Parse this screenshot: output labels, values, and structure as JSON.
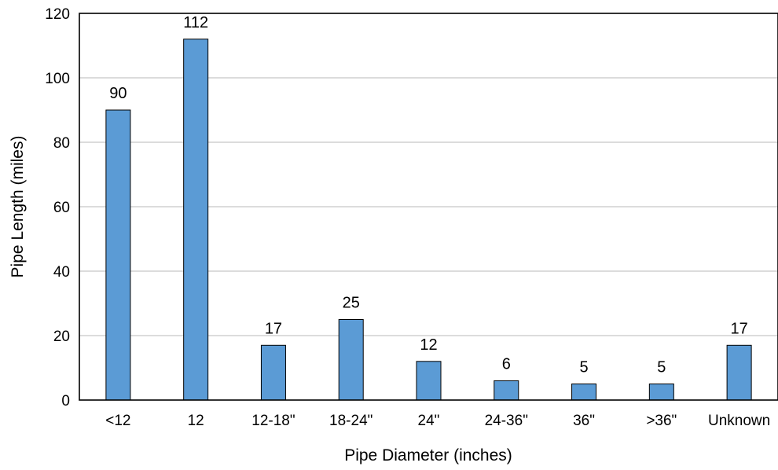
{
  "chart_data": {
    "type": "bar",
    "categories": [
      "<12",
      "12",
      "12-18\"",
      "18-24\"",
      "24\"",
      "24-36\"",
      "36\"",
      ">36\"",
      "Unknown"
    ],
    "values": [
      90,
      112,
      17,
      25,
      12,
      6,
      5,
      5,
      17
    ],
    "data_labels": [
      "90",
      "112",
      "17",
      "25",
      "12",
      "6",
      "5",
      "5",
      "17"
    ],
    "title": "",
    "xlabel": "Pipe Diameter (inches)",
    "ylabel": "Pipe Length (miles)",
    "ylim": [
      0,
      120
    ],
    "yticks": [
      "0",
      "20",
      "40",
      "60",
      "80",
      "100",
      "120"
    ],
    "grid": true,
    "legend": "none",
    "bar_color": "#5b9bd5"
  }
}
